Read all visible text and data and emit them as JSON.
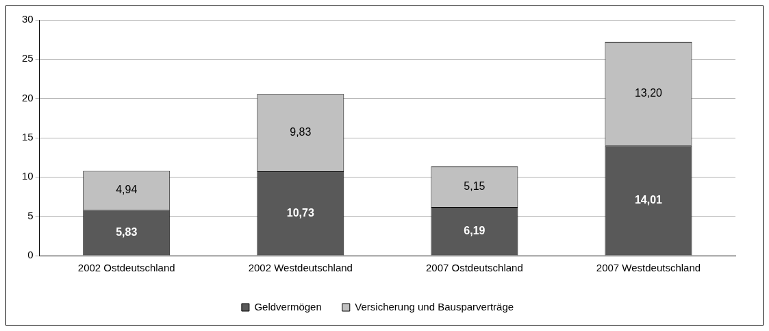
{
  "chart_data": {
    "type": "bar",
    "stacked": true,
    "categories": [
      "2002 Ostdeutschland",
      "2002 Westdeutschland",
      "2007 Ostdeutschland",
      "2007 Westdeutschland"
    ],
    "series": [
      {
        "name": "Geldvermögen",
        "color": "#595959",
        "values": [
          5.83,
          10.73,
          6.19,
          14.01
        ],
        "value_labels": [
          "5,83",
          "10,73",
          "6,19",
          "14,01"
        ]
      },
      {
        "name": "Versicherung und Bausparverträge",
        "color": "#c0c0c0",
        "values": [
          4.94,
          9.83,
          5.15,
          13.2
        ],
        "value_labels": [
          "4,94",
          "9,83",
          "5,15",
          "13,20"
        ]
      }
    ],
    "ylim": [
      0,
      30
    ],
    "yticks": [
      0,
      5,
      10,
      15,
      20,
      25,
      30
    ],
    "grid": "y",
    "legend": "bottom"
  }
}
